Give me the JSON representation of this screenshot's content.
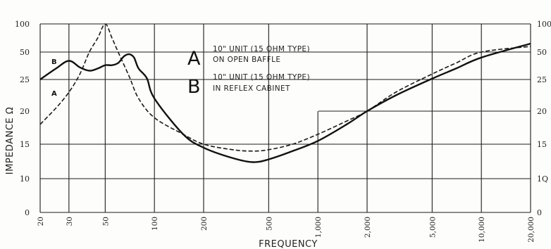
{
  "chart_data": {
    "type": "line",
    "xlabel": "FREQUENCY",
    "ylabel": "IMPEDANCE Ω",
    "x_scale": "log",
    "xlim": [
      20,
      20000
    ],
    "x_ticks": [
      {
        "value": 20,
        "label": "20"
      },
      {
        "value": 30,
        "label": "30"
      },
      {
        "value": 50,
        "label": "50"
      },
      {
        "value": 100,
        "label": "100"
      },
      {
        "value": 200,
        "label": "200"
      },
      {
        "value": 500,
        "label": "500"
      },
      {
        "value": 1000,
        "label": "1,000"
      },
      {
        "value": 2000,
        "label": "2,000"
      },
      {
        "value": 5000,
        "label": "5,000"
      },
      {
        "value": 10000,
        "label": "10,000"
      },
      {
        "value": 20000,
        "label": "20,000"
      }
    ],
    "y_ticks_left": [
      "100",
      "50",
      "25",
      "20",
      "15",
      "10",
      "0"
    ],
    "y_ticks_right": [
      "100",
      "50",
      "25",
      "20",
      "15",
      "1Q",
      "0"
    ],
    "grid": true,
    "legend": [
      {
        "key": "A",
        "line1": "10\" UNIT (15 OHM TYPE)",
        "line2": "ON OPEN BAFFLE"
      },
      {
        "key": "B",
        "line1": "10\" UNIT (15 OHM TYPE)",
        "line2": "IN REFLEX CABINET"
      }
    ],
    "series": [
      {
        "name": "A",
        "style": "dashed",
        "points": [
          [
            20,
            18
          ],
          [
            25,
            20.5
          ],
          [
            30,
            23
          ],
          [
            35,
            30
          ],
          [
            40,
            50
          ],
          [
            45,
            75
          ],
          [
            50,
            100
          ],
          [
            55,
            75
          ],
          [
            60,
            50
          ],
          [
            70,
            28
          ],
          [
            80,
            22
          ],
          [
            100,
            19
          ],
          [
            150,
            16.5
          ],
          [
            200,
            15
          ],
          [
            300,
            14.2
          ],
          [
            400,
            14
          ],
          [
            500,
            14.2
          ],
          [
            700,
            15
          ],
          [
            1000,
            16.5
          ],
          [
            1500,
            18.5
          ],
          [
            2000,
            20
          ],
          [
            3000,
            23
          ],
          [
            5000,
            30
          ],
          [
            7000,
            40
          ],
          [
            10000,
            50
          ],
          [
            20000,
            60
          ]
        ]
      },
      {
        "name": "B",
        "style": "solid",
        "points": [
          [
            20,
            25
          ],
          [
            25,
            35
          ],
          [
            30,
            42
          ],
          [
            35,
            36
          ],
          [
            40,
            33
          ],
          [
            45,
            35
          ],
          [
            50,
            38
          ],
          [
            55,
            38
          ],
          [
            60,
            40
          ],
          [
            65,
            46
          ],
          [
            70,
            48
          ],
          [
            75,
            45
          ],
          [
            80,
            35
          ],
          [
            90,
            26
          ],
          [
            100,
            22
          ],
          [
            150,
            16.5
          ],
          [
            200,
            14.5
          ],
          [
            300,
            13
          ],
          [
            400,
            12.4
          ],
          [
            500,
            12.8
          ],
          [
            700,
            14
          ],
          [
            1000,
            15.5
          ],
          [
            1500,
            18
          ],
          [
            2000,
            20
          ],
          [
            3000,
            22.5
          ],
          [
            5000,
            25.8
          ],
          [
            7000,
            35
          ],
          [
            10000,
            45
          ],
          [
            20000,
            65
          ]
        ]
      }
    ]
  }
}
